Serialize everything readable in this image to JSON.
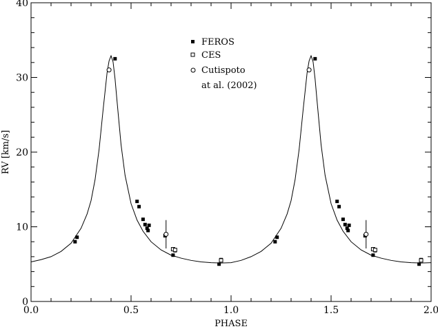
{
  "chart_data": {
    "type": "scatter",
    "xlabel": "PHASE",
    "ylabel": "RV [km/s]",
    "xlim": [
      0.0,
      2.0
    ],
    "ylim": [
      0,
      40
    ],
    "x_ticks": [
      "0.0",
      "0.5",
      "1.0",
      "1.5",
      "2.0"
    ],
    "y_ticks": [
      "0",
      "10",
      "20",
      "30",
      "40"
    ],
    "x_tick_values": [
      0.0,
      0.5,
      1.0,
      1.5,
      2.0
    ],
    "y_tick_values": [
      0,
      10,
      20,
      30,
      40
    ],
    "grid": false,
    "legend_position": "top-center",
    "legend": [
      {
        "marker": "filled-square",
        "label": "FEROS"
      },
      {
        "marker": "open-square",
        "label": "CES"
      },
      {
        "marker": "open-circle",
        "label": "Cutispoto"
      },
      {
        "marker": "none",
        "label": "at al. (2002)"
      }
    ],
    "model_curve": {
      "type": "line",
      "x": [
        0.0,
        0.05,
        0.1,
        0.15,
        0.2,
        0.25,
        0.28,
        0.3,
        0.32,
        0.34,
        0.36,
        0.38,
        0.39,
        0.4,
        0.41,
        0.42,
        0.43,
        0.45,
        0.47,
        0.5,
        0.53,
        0.56,
        0.6,
        0.65,
        0.7,
        0.75,
        0.8,
        0.85,
        0.9,
        0.95,
        1.0,
        1.05,
        1.1,
        1.15,
        1.2,
        1.25,
        1.28,
        1.3,
        1.32,
        1.34,
        1.36,
        1.38,
        1.39,
        1.4,
        1.41,
        1.42,
        1.43,
        1.45,
        1.47,
        1.5,
        1.53,
        1.56,
        1.6,
        1.65,
        1.7,
        1.75,
        1.8,
        1.85,
        1.9,
        1.95,
        2.0
      ],
      "y": [
        5.3,
        5.6,
        6.0,
        6.7,
        7.8,
        9.8,
        11.7,
        13.5,
        16.3,
        20.3,
        25.6,
        30.6,
        32.2,
        32.9,
        32.1,
        29.8,
        26.8,
        21.0,
        16.9,
        13.1,
        10.9,
        9.4,
        8.0,
        6.9,
        6.2,
        5.8,
        5.5,
        5.3,
        5.2,
        5.15,
        5.2,
        5.5,
        6.0,
        6.7,
        7.8,
        9.8,
        11.7,
        13.5,
        16.3,
        20.3,
        25.6,
        30.6,
        32.2,
        32.9,
        32.1,
        29.8,
        26.8,
        21.0,
        16.9,
        13.1,
        10.9,
        9.4,
        8.0,
        6.9,
        6.2,
        5.8,
        5.5,
        5.3,
        5.2,
        5.15,
        5.2
      ]
    },
    "series": [
      {
        "name": "FEROS",
        "marker": "filled-square",
        "x": [
          0.22,
          0.23,
          0.42,
          0.53,
          0.54,
          0.56,
          0.57,
          0.58,
          0.585,
          0.59,
          0.67,
          0.71,
          0.72,
          0.94,
          0.95,
          1.22,
          1.23,
          1.42,
          1.53,
          1.54,
          1.56,
          1.57,
          1.58,
          1.585,
          1.59,
          1.67,
          1.71,
          1.72,
          1.94,
          1.95
        ],
        "y": [
          8.0,
          8.6,
          32.5,
          13.4,
          12.7,
          11.0,
          10.3,
          9.8,
          9.5,
          10.2,
          8.8,
          6.2,
          6.8,
          5.0,
          5.6,
          8.0,
          8.6,
          32.5,
          13.4,
          12.7,
          11.0,
          10.3,
          9.8,
          9.5,
          10.2,
          8.8,
          6.2,
          6.8,
          5.0,
          5.6
        ]
      },
      {
        "name": "CES",
        "marker": "open-square",
        "x": [
          0.71,
          0.72,
          0.95,
          1.71,
          1.72,
          1.95
        ],
        "y": [
          7.0,
          6.9,
          5.5,
          7.0,
          6.9,
          5.5
        ]
      },
      {
        "name": "Cutispoto",
        "marker": "open-circle",
        "x": [
          0.39,
          0.675,
          1.39,
          1.675
        ],
        "y": [
          31.0,
          9.0,
          31.0,
          9.0
        ],
        "yerr": [
          0,
          1.9,
          0,
          1.9
        ]
      }
    ]
  }
}
